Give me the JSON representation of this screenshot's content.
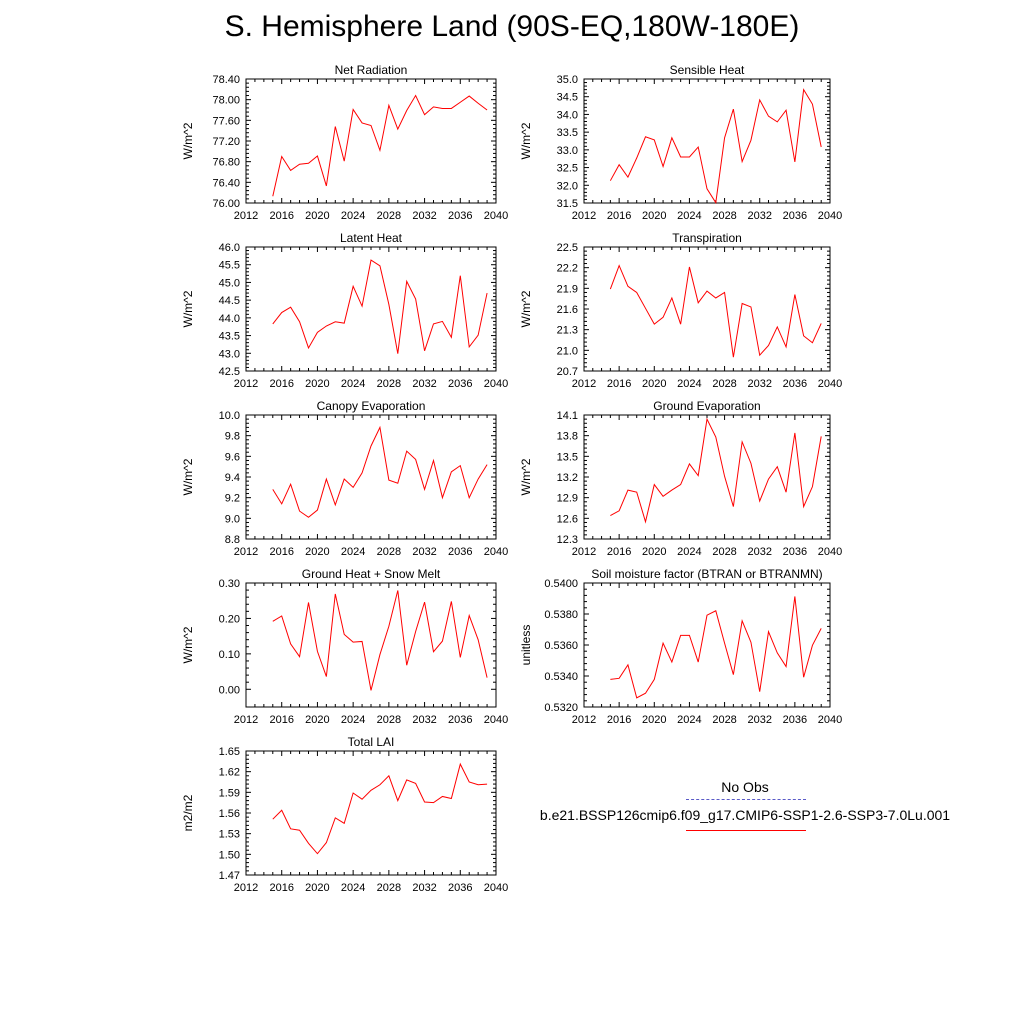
{
  "figure": {
    "title": "S. Hemisphere Land (90S-EQ,180W-180E)"
  },
  "legend": {
    "obs_label": "No Obs",
    "obs_color": "#5a5ac8",
    "model_label": "b.e21.BSSP126cmip6.f09_g17.CMIP6-SSP1-2.6-SSP3-7.0Lu.001",
    "model_color": "#ff0000"
  },
  "chart_data": [
    {
      "type": "line",
      "title": "Net Radiation",
      "ylabel": "W/m^2",
      "xlim": [
        2012,
        2040
      ],
      "ylim": [
        76.0,
        78.4
      ],
      "xticks": [
        "2012",
        "2016",
        "2020",
        "2024",
        "2028",
        "2032",
        "2036",
        "2040"
      ],
      "yticks": [
        "76.00",
        "76.40",
        "76.80",
        "77.20",
        "77.60",
        "78.00",
        "78.40"
      ],
      "x": [
        2015,
        2016,
        2017,
        2018,
        2019,
        2020,
        2021,
        2022,
        2023,
        2024,
        2025,
        2026,
        2027,
        2028,
        2029,
        2030,
        2031,
        2032,
        2033,
        2034,
        2035,
        2036,
        2037,
        2038,
        2039
      ],
      "series": [
        {
          "values": [
            76.13,
            76.9,
            76.63,
            76.75,
            76.77,
            76.91,
            76.33,
            77.48,
            76.81,
            77.81,
            77.55,
            77.5,
            77.02,
            77.89,
            77.43,
            77.79,
            78.08,
            77.71,
            77.86,
            77.83,
            77.83,
            77.95,
            78.07,
            77.93,
            77.8
          ]
        }
      ]
    },
    {
      "type": "line",
      "title": "Sensible Heat",
      "ylabel": "W/m^2",
      "xlim": [
        2012,
        2040
      ],
      "ylim": [
        31.5,
        35.0
      ],
      "xticks": [
        "2012",
        "2016",
        "2020",
        "2024",
        "2028",
        "2032",
        "2036",
        "2040"
      ],
      "yticks": [
        "31.5",
        "32.0",
        "32.5",
        "33.0",
        "33.5",
        "34.0",
        "34.5",
        "35.0"
      ],
      "x": [
        2015,
        2016,
        2017,
        2018,
        2019,
        2020,
        2021,
        2022,
        2023,
        2024,
        2025,
        2026,
        2027,
        2028,
        2029,
        2030,
        2031,
        2032,
        2033,
        2034,
        2035,
        2036,
        2037,
        2038,
        2039
      ],
      "series": [
        {
          "values": [
            32.13,
            32.58,
            32.23,
            32.77,
            33.37,
            33.28,
            32.53,
            33.34,
            32.8,
            32.8,
            33.08,
            31.9,
            31.51,
            33.34,
            34.15,
            32.67,
            33.27,
            34.41,
            33.95,
            33.79,
            34.12,
            32.66,
            34.7,
            34.29,
            33.08
          ]
        }
      ]
    },
    {
      "type": "line",
      "title": "Latent Heat",
      "ylabel": "W/m^2",
      "xlim": [
        2012,
        2040
      ],
      "ylim": [
        42.5,
        46.0
      ],
      "xticks": [
        "2012",
        "2016",
        "2020",
        "2024",
        "2028",
        "2032",
        "2036",
        "2040"
      ],
      "yticks": [
        "42.5",
        "43.0",
        "43.5",
        "44.0",
        "44.5",
        "45.0",
        "45.5",
        "46.0"
      ],
      "x": [
        2015,
        2016,
        2017,
        2018,
        2019,
        2020,
        2021,
        2022,
        2023,
        2024,
        2025,
        2026,
        2027,
        2028,
        2029,
        2030,
        2031,
        2032,
        2033,
        2034,
        2035,
        2036,
        2037,
        2038,
        2039
      ],
      "series": [
        {
          "values": [
            43.83,
            44.15,
            44.3,
            43.89,
            43.15,
            43.59,
            43.77,
            43.89,
            43.85,
            44.89,
            44.33,
            45.63,
            45.47,
            44.38,
            42.99,
            45.03,
            44.53,
            43.07,
            43.83,
            43.9,
            43.45,
            45.19,
            43.18,
            43.51,
            44.7
          ]
        }
      ]
    },
    {
      "type": "line",
      "title": "Transpiration",
      "ylabel": "W/m^2",
      "xlim": [
        2012,
        2040
      ],
      "ylim": [
        20.7,
        22.5
      ],
      "xticks": [
        "2012",
        "2016",
        "2020",
        "2024",
        "2028",
        "2032",
        "2036",
        "2040"
      ],
      "yticks": [
        "20.7",
        "21.0",
        "21.3",
        "21.6",
        "21.9",
        "22.2",
        "22.5"
      ],
      "x": [
        2015,
        2016,
        2017,
        2018,
        2019,
        2020,
        2021,
        2022,
        2023,
        2024,
        2025,
        2026,
        2027,
        2028,
        2029,
        2030,
        2031,
        2032,
        2033,
        2034,
        2035,
        2036,
        2037,
        2038,
        2039
      ],
      "series": [
        {
          "values": [
            21.89,
            22.23,
            21.93,
            21.84,
            21.61,
            21.38,
            21.48,
            21.76,
            21.38,
            22.21,
            21.69,
            21.86,
            21.76,
            21.84,
            20.9,
            21.68,
            21.63,
            20.93,
            21.07,
            21.34,
            21.05,
            21.81,
            21.21,
            21.11,
            21.39
          ]
        }
      ]
    },
    {
      "type": "line",
      "title": "Canopy Evaporation",
      "ylabel": "W/m^2",
      "xlim": [
        2012,
        2040
      ],
      "ylim": [
        8.8,
        10.0
      ],
      "xticks": [
        "2012",
        "2016",
        "2020",
        "2024",
        "2028",
        "2032",
        "2036",
        "2040"
      ],
      "yticks": [
        "8.8",
        "9.0",
        "9.2",
        "9.4",
        "9.6",
        "9.8",
        "10.0"
      ],
      "x": [
        2015,
        2016,
        2017,
        2018,
        2019,
        2020,
        2021,
        2022,
        2023,
        2024,
        2025,
        2026,
        2027,
        2028,
        2029,
        2030,
        2031,
        2032,
        2033,
        2034,
        2035,
        2036,
        2037,
        2038,
        2039
      ],
      "series": [
        {
          "values": [
            9.28,
            9.14,
            9.33,
            9.07,
            9.01,
            9.08,
            9.38,
            9.13,
            9.38,
            9.3,
            9.44,
            9.7,
            9.88,
            9.37,
            9.34,
            9.65,
            9.57,
            9.28,
            9.56,
            9.2,
            9.45,
            9.51,
            9.2,
            9.38,
            9.52
          ]
        }
      ]
    },
    {
      "type": "line",
      "title": "Ground Evaporation",
      "ylabel": "W/m^2",
      "xlim": [
        2012,
        2040
      ],
      "ylim": [
        12.3,
        14.1
      ],
      "xticks": [
        "2012",
        "2016",
        "2020",
        "2024",
        "2028",
        "2032",
        "2036",
        "2040"
      ],
      "yticks": [
        "12.3",
        "12.6",
        "12.9",
        "13.2",
        "13.5",
        "13.8",
        "14.1"
      ],
      "x": [
        2015,
        2016,
        2017,
        2018,
        2019,
        2020,
        2021,
        2022,
        2023,
        2024,
        2025,
        2026,
        2027,
        2028,
        2029,
        2030,
        2031,
        2032,
        2033,
        2034,
        2035,
        2036,
        2037,
        2038,
        2039
      ],
      "series": [
        {
          "values": [
            12.64,
            12.71,
            13.01,
            12.98,
            12.55,
            13.09,
            12.92,
            13.01,
            13.09,
            13.39,
            13.22,
            14.04,
            13.78,
            13.21,
            12.77,
            13.71,
            13.4,
            12.85,
            13.17,
            13.35,
            12.98,
            13.84,
            12.77,
            13.06,
            13.79
          ]
        }
      ]
    },
    {
      "type": "line",
      "title": "Ground Heat + Snow Melt",
      "ylabel": "W/m^2",
      "xlim": [
        2012,
        2040
      ],
      "ylim": [
        -0.05,
        0.3
      ],
      "xticks": [
        "2012",
        "2016",
        "2020",
        "2024",
        "2028",
        "2032",
        "2036",
        "2040"
      ],
      "yticks": [
        "0.00",
        "0.10",
        "0.20",
        "0.30"
      ],
      "x": [
        2015,
        2016,
        2017,
        2018,
        2019,
        2020,
        2021,
        2022,
        2023,
        2024,
        2025,
        2026,
        2027,
        2028,
        2029,
        2030,
        2031,
        2032,
        2033,
        2034,
        2035,
        2036,
        2037,
        2038,
        2039
      ],
      "series": [
        {
          "values": [
            0.192,
            0.207,
            0.128,
            0.092,
            0.245,
            0.107,
            0.036,
            0.269,
            0.155,
            0.133,
            0.135,
            -0.003,
            0.098,
            0.178,
            0.279,
            0.068,
            0.163,
            0.246,
            0.106,
            0.136,
            0.248,
            0.09,
            0.208,
            0.14,
            0.033
          ]
        }
      ]
    },
    {
      "type": "line",
      "title": "Soil moisture factor (BTRAN or BTRANMN)",
      "ylabel": "unitless",
      "xlim": [
        2012,
        2040
      ],
      "ylim": [
        0.532,
        0.54
      ],
      "xticks": [
        "2012",
        "2016",
        "2020",
        "2024",
        "2028",
        "2032",
        "2036",
        "2040"
      ],
      "yticks": [
        "0.5320",
        "0.5340",
        "0.5360",
        "0.5380",
        "0.5400"
      ],
      "x": [
        2015,
        2016,
        2017,
        2018,
        2019,
        2020,
        2021,
        2022,
        2023,
        2024,
        2025,
        2026,
        2027,
        2028,
        2029,
        2030,
        2031,
        2032,
        2033,
        2034,
        2035,
        2036,
        2037,
        2038,
        2039
      ],
      "series": [
        {
          "values": [
            0.53378,
            0.53385,
            0.53472,
            0.53259,
            0.53289,
            0.53378,
            0.53612,
            0.5349,
            0.53662,
            0.53662,
            0.5349,
            0.53792,
            0.53821,
            0.53612,
            0.53409,
            0.53756,
            0.53618,
            0.53299,
            0.53686,
            0.53549,
            0.53461,
            0.53913,
            0.53392,
            0.53598,
            0.53707
          ]
        }
      ]
    },
    {
      "type": "line",
      "title": "Total LAI",
      "ylabel": "m2/m2",
      "xlim": [
        2012,
        2040
      ],
      "ylim": [
        1.47,
        1.65
      ],
      "xticks": [
        "2012",
        "2016",
        "2020",
        "2024",
        "2028",
        "2032",
        "2036",
        "2040"
      ],
      "yticks": [
        "1.47",
        "1.50",
        "1.53",
        "1.56",
        "1.59",
        "1.62",
        "1.65"
      ],
      "x": [
        2015,
        2016,
        2017,
        2018,
        2019,
        2020,
        2021,
        2022,
        2023,
        2024,
        2025,
        2026,
        2027,
        2028,
        2029,
        2030,
        2031,
        2032,
        2033,
        2034,
        2035,
        2036,
        2037,
        2038,
        2039
      ],
      "series": [
        {
          "values": [
            1.551,
            1.564,
            1.537,
            1.535,
            1.516,
            1.501,
            1.517,
            1.553,
            1.545,
            1.589,
            1.58,
            1.593,
            1.601,
            1.614,
            1.578,
            1.608,
            1.603,
            1.576,
            1.575,
            1.584,
            1.581,
            1.631,
            1.605,
            1.601,
            1.602
          ]
        }
      ]
    }
  ]
}
